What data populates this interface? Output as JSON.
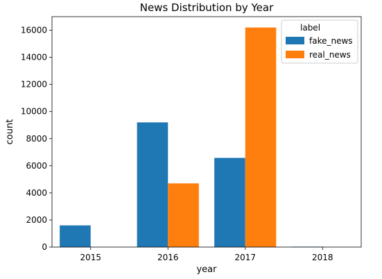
{
  "chart_data": {
    "type": "bar",
    "title": "News Distribution by Year",
    "xlabel": "year",
    "ylabel": "count",
    "categories": [
      "2015",
      "2016",
      "2017",
      "2018"
    ],
    "series": [
      {
        "name": "fake_news",
        "color": "#1f77b4",
        "values": [
          1600,
          9200,
          6580,
          30
        ]
      },
      {
        "name": "real_news",
        "color": "#ff7f0e",
        "values": [
          0,
          4700,
          16200,
          0
        ]
      }
    ],
    "ylim": [
      0,
      17000
    ],
    "yticks": [
      0,
      2000,
      4000,
      6000,
      8000,
      10000,
      12000,
      14000,
      16000
    ],
    "grid": false,
    "legend": {
      "title": "label",
      "position": "top-right"
    }
  }
}
